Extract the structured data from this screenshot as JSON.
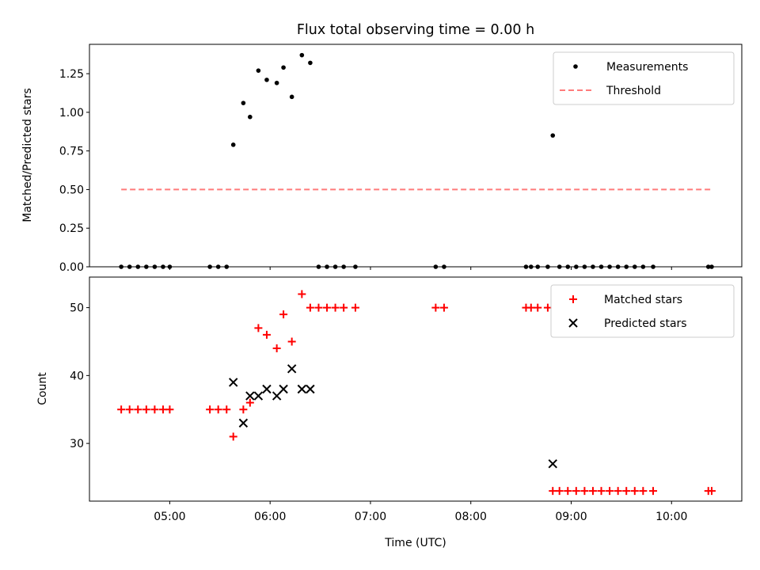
{
  "title": "Flux total observing time = 0.00 h",
  "xlabel": "Time (UTC)",
  "x_ticks": [
    "05:00",
    "06:00",
    "07:00",
    "08:00",
    "09:00",
    "10:00"
  ],
  "x_tick_hours": [
    5,
    6,
    7,
    8,
    9,
    10
  ],
  "x_range_hours": [
    4.2,
    10.7
  ],
  "chart_data": [
    {
      "type": "scatter",
      "ylabel": "Matched/Predicted stars",
      "ylim": [
        0,
        1.44
      ],
      "y_ticks": [
        "0.00",
        "0.25",
        "0.50",
        "0.75",
        "1.00",
        "1.25"
      ],
      "y_tick_values": [
        0,
        0.25,
        0.5,
        0.75,
        1.0,
        1.25
      ],
      "legend": {
        "position": "top-right",
        "entries": [
          "Measurements",
          "Threshold"
        ]
      },
      "series": [
        {
          "name": "Measurements",
          "marker": "dot",
          "color": "#000000",
          "x": [
            "04:31",
            "04:36",
            "04:41",
            "04:46",
            "04:51",
            "04:56",
            "05:00",
            "05:24",
            "05:29",
            "05:34",
            "05:38",
            "05:44",
            "05:48",
            "05:53",
            "05:58",
            "06:04",
            "06:08",
            "06:13",
            "06:19",
            "06:24",
            "06:29",
            "06:34",
            "06:39",
            "06:44",
            "06:51",
            "07:39",
            "07:44",
            "08:33",
            "08:36",
            "08:40",
            "08:46",
            "08:49",
            "08:53",
            "08:58",
            "09:03",
            "09:08",
            "09:13",
            "09:18",
            "09:23",
            "09:28",
            "09:33",
            "09:38",
            "09:43",
            "09:49",
            "10:22",
            "10:24"
          ],
          "y": [
            0,
            0,
            0,
            0,
            0,
            0,
            0,
            0,
            0,
            0,
            0.79,
            1.06,
            0.97,
            1.27,
            1.21,
            1.19,
            1.29,
            1.1,
            1.37,
            1.32,
            0,
            0,
            0,
            0,
            0,
            0,
            0,
            0,
            0,
            0,
            0,
            0.85,
            0,
            0,
            0,
            0,
            0,
            0,
            0,
            0,
            0,
            0,
            0,
            0,
            0,
            0
          ]
        },
        {
          "name": "Threshold",
          "type": "line",
          "dash": "dashed",
          "color": "#ff7b7b",
          "x": [
            "04:31",
            "10:24"
          ],
          "y": [
            0.5,
            0.5
          ]
        }
      ]
    },
    {
      "type": "scatter",
      "ylabel": "Count",
      "ylim": [
        21.5,
        54.5
      ],
      "y_ticks": [
        "30",
        "40",
        "50"
      ],
      "y_tick_values": [
        30,
        40,
        50
      ],
      "legend": {
        "position": "top-right",
        "entries": [
          "Matched stars",
          "Predicted stars"
        ]
      },
      "series": [
        {
          "name": "Matched stars",
          "marker": "plus",
          "color": "#ff0000",
          "x": [
            "04:31",
            "04:36",
            "04:41",
            "04:46",
            "04:51",
            "04:56",
            "05:00",
            "05:24",
            "05:29",
            "05:34",
            "05:38",
            "05:44",
            "05:48",
            "05:53",
            "05:58",
            "06:04",
            "06:08",
            "06:13",
            "06:19",
            "06:24",
            "06:29",
            "06:34",
            "06:39",
            "06:44",
            "06:51",
            "07:39",
            "07:44",
            "08:33",
            "08:36",
            "08:40",
            "08:46",
            "08:49",
            "08:53",
            "08:58",
            "09:03",
            "09:08",
            "09:13",
            "09:18",
            "09:23",
            "09:28",
            "09:33",
            "09:38",
            "09:43",
            "09:49",
            "10:22",
            "10:24"
          ],
          "y": [
            35,
            35,
            35,
            35,
            35,
            35,
            35,
            35,
            35,
            35,
            31,
            35,
            36,
            47,
            46,
            44,
            49,
            45,
            52,
            50,
            50,
            50,
            50,
            50,
            50,
            50,
            50,
            50,
            50,
            50,
            50,
            23,
            23,
            23,
            23,
            23,
            23,
            23,
            23,
            23,
            23,
            23,
            23,
            23,
            23,
            23
          ]
        },
        {
          "name": "Predicted stars",
          "marker": "x",
          "color": "#000000",
          "x": [
            "05:38",
            "05:44",
            "05:48",
            "05:53",
            "05:58",
            "06:04",
            "06:08",
            "06:13",
            "06:19",
            "06:24",
            "08:49"
          ],
          "y": [
            39,
            33,
            37,
            37,
            38,
            37,
            38,
            41,
            38,
            38,
            27
          ]
        }
      ]
    }
  ],
  "colors": {
    "axes": "#000000",
    "background": "#ffffff",
    "legend_border": "#cccccc"
  }
}
